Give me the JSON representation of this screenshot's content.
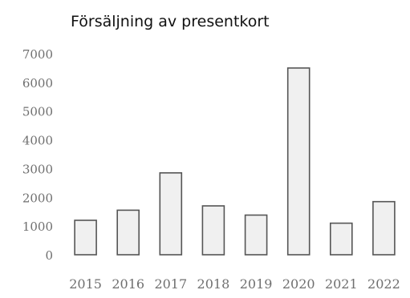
{
  "chart_data": {
    "type": "bar",
    "title": "Försäljning av presentkort",
    "xlabel": "",
    "ylabel": "",
    "categories": [
      "2015",
      "2016",
      "2017",
      "2018",
      "2019",
      "2020",
      "2021",
      "2022"
    ],
    "values": [
      1200,
      1550,
      2850,
      1700,
      1380,
      6500,
      1100,
      1850
    ],
    "ylim": [
      0,
      7000
    ],
    "yticks": [
      "0",
      "1000",
      "2000",
      "3000",
      "4000",
      "5000",
      "6000",
      "7000"
    ],
    "grid": false,
    "legend": "none",
    "colors": {
      "bar_fill": "#f0f0f0",
      "bar_stroke": "#555555",
      "tick_text": "#6f6f6f",
      "title_text": "#111111"
    }
  }
}
